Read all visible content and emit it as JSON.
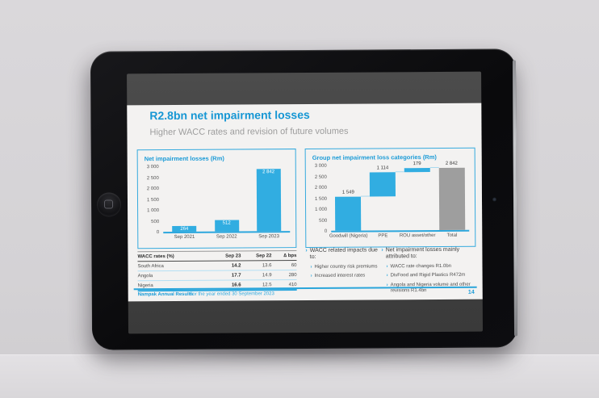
{
  "slide": {
    "title": "R2.8bn net impairment losses",
    "subtitle": "Higher WACC rates and revision of future volumes",
    "footer": {
      "brand": "Nampak Annual Results",
      "period": "For the year ended 30 September 2023",
      "page": "14"
    }
  },
  "chart_data": [
    {
      "type": "bar",
      "title": "Net impairment losses (Rm)",
      "categories": [
        "Sep 2021",
        "Sep 2022",
        "Sep 2023"
      ],
      "values": [
        264,
        512,
        2842
      ],
      "value_labels": [
        "264",
        "512",
        "2 842"
      ],
      "ymax": 3000,
      "yticks": [
        "0",
        "500",
        "1 000",
        "1 500",
        "2 000",
        "2 500",
        "3 000"
      ],
      "label_position": "inside",
      "bar_color": "#31ade1",
      "grid": false,
      "legend": "none"
    },
    {
      "type": "waterfall",
      "title": "Group net impairment loss categories (Rm)",
      "categories": [
        "Goodwill (Nigeria)",
        "PPE",
        "ROU asset/other",
        "Total"
      ],
      "bars": [
        {
          "start": 0,
          "end": 1549,
          "label": "1 549",
          "color": "#31ade1"
        },
        {
          "start": 1549,
          "end": 2663,
          "label": "1 114",
          "color": "#31ade1"
        },
        {
          "start": 2663,
          "end": 2842,
          "label": "179",
          "color": "#31ade1"
        },
        {
          "start": 0,
          "end": 2842,
          "label": "2 842",
          "color": "#9e9e9e"
        }
      ],
      "ymax": 3000,
      "yticks": [
        "0",
        "500",
        "1 000",
        "1 500",
        "2 000",
        "2 500",
        "3 000"
      ],
      "label_position": "above",
      "grid": false,
      "legend": "none"
    }
  ],
  "table": {
    "headers": [
      "WACC rates (%)",
      "Sep 23",
      "Sep 22",
      "∆ bps"
    ],
    "rows": [
      [
        "South Africa",
        "14.2",
        "13.6",
        "60"
      ],
      [
        "Angola",
        "17.7",
        "14.9",
        "280"
      ],
      [
        "Nigeria",
        "16.6",
        "12.5",
        "410"
      ]
    ]
  },
  "bullets": {
    "col1": {
      "heading": "WACC related impacts due to:",
      "items": [
        "Higher country risk premiums",
        "Increased interest rates"
      ]
    },
    "col2": {
      "heading": "Net impairment losses mainly attributed to:",
      "items": [
        "WACC rate changes R1.0bn",
        "DivFood and Rigid Plastics R472m",
        "Angola and Nigeria volume and other revisions R1.4bn"
      ]
    }
  },
  "colors": {
    "accent_blue": "#1b9bd7",
    "bar_blue": "#31ade1",
    "bar_gray": "#9e9e9e",
    "slide_bg": "#f3f2f1"
  }
}
